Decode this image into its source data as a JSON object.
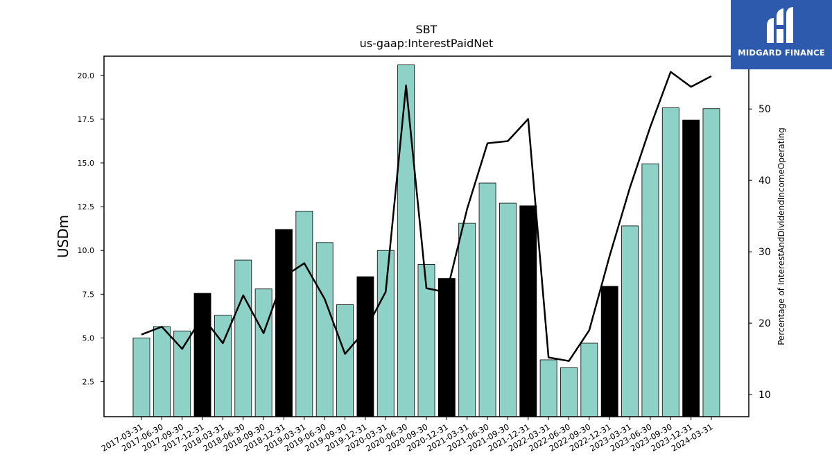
{
  "chart_data": {
    "type": "bar",
    "title": "SBT",
    "subtitle": "us-gaap:InterestPaidNet",
    "ylabel": "USDm",
    "y2label": "Percentage of InterestAndDividendIncomeOperating",
    "ylim": [
      0.5,
      21.1
    ],
    "y2lim": [
      6.9,
      57.4
    ],
    "yticks": [
      "2.5",
      "5.0",
      "7.5",
      "10.0",
      "12.5",
      "15.0",
      "17.5",
      "20.0"
    ],
    "y2ticks": [
      "10",
      "20",
      "30",
      "40",
      "50"
    ],
    "categories": [
      "2017-03-31",
      "2017-06-30",
      "2017-09-30",
      "2017-12-31",
      "2018-03-31",
      "2018-06-30",
      "2018-09-30",
      "2018-12-31",
      "2019-03-31",
      "2019-06-30",
      "2019-09-30",
      "2019-12-31",
      "2020-03-31",
      "2020-06-30",
      "2020-09-30",
      "2020-12-31",
      "2021-03-31",
      "2021-06-30",
      "2021-09-30",
      "2021-12-31",
      "2022-03-31",
      "2022-06-30",
      "2022-09-30",
      "2022-12-31",
      "2023-03-31",
      "2023-06-30",
      "2023-09-30",
      "2023-12-31",
      "2024-03-31"
    ],
    "series": [
      {
        "type": "bar",
        "values": [
          5.0,
          5.65,
          5.4,
          7.55,
          6.3,
          9.45,
          7.8,
          11.2,
          12.25,
          10.45,
          6.9,
          8.5,
          10.0,
          20.6,
          9.2,
          8.4,
          11.55,
          13.85,
          12.7,
          12.55,
          3.75,
          3.3,
          4.7,
          7.95,
          11.4,
          14.95,
          18.15,
          17.45,
          18.1
        ],
        "colors": [
          "#8ed1c6",
          "#8ed1c6",
          "#8ed1c6",
          "#000000",
          "#8ed1c6",
          "#8ed1c6",
          "#8ed1c6",
          "#000000",
          "#8ed1c6",
          "#8ed1c6",
          "#8ed1c6",
          "#000000",
          "#8ed1c6",
          "#8ed1c6",
          "#8ed1c6",
          "#000000",
          "#8ed1c6",
          "#8ed1c6",
          "#8ed1c6",
          "#000000",
          "#8ed1c6",
          "#8ed1c6",
          "#8ed1c6",
          "#000000",
          "#8ed1c6",
          "#8ed1c6",
          "#8ed1c6",
          "#000000",
          "#8ed1c6"
        ]
      },
      {
        "type": "line",
        "axis": "right",
        "color": "#000000",
        "values": [
          18.4,
          19.5,
          16.4,
          20.9,
          17.2,
          23.9,
          18.6,
          26.5,
          28.4,
          23.4,
          15.7,
          19.0,
          24.4,
          53.3,
          24.9,
          24.3,
          36.0,
          45.2,
          45.5,
          48.6,
          15.2,
          14.7,
          19.0,
          29.4,
          39.0,
          47.5,
          55.2,
          53.1,
          54.6
        ]
      }
    ]
  },
  "logo": {
    "text": "MIDGARD FINANCE",
    "background": "#2d5aad"
  }
}
